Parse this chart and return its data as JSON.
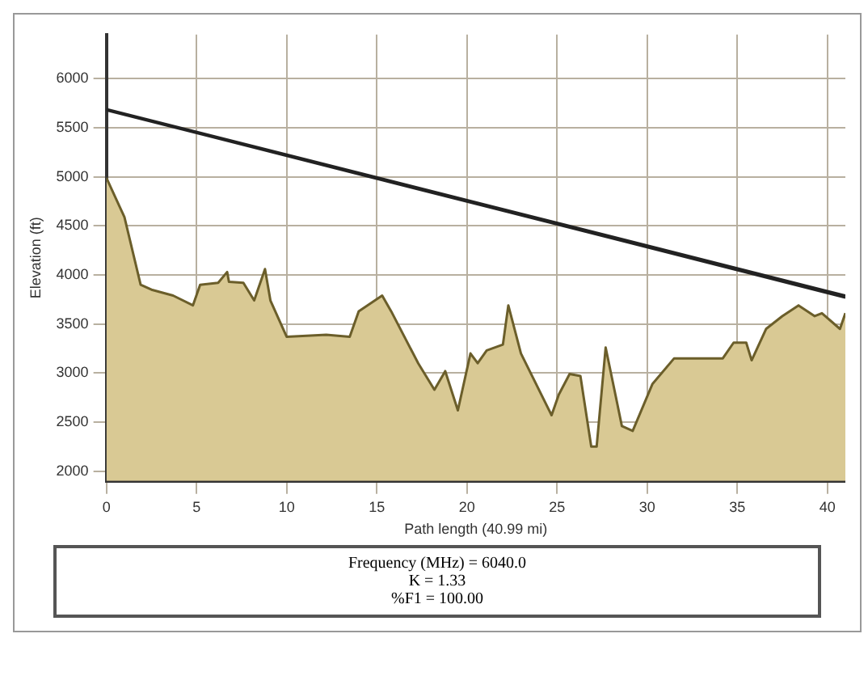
{
  "chart_data": {
    "type": "area",
    "xlabel": "Path length (40.99 mi)",
    "ylabel": "Elevation (ft)",
    "xlim": [
      0,
      41
    ],
    "xticks": [
      0,
      5,
      10,
      15,
      20,
      25,
      30,
      35,
      40
    ],
    "ylim": [
      1900,
      6450
    ],
    "yticks": [
      2000,
      2500,
      3000,
      3500,
      4000,
      4500,
      5000,
      5500,
      6000
    ],
    "grid": true,
    "legend": false,
    "marker": "none",
    "series": [
      {
        "type": "area",
        "color": "#6b5e2a",
        "x": [
          0,
          1.0,
          1.9,
          2.5,
          3.7,
          4.8,
          5.2,
          6.2,
          6.7,
          6.8,
          7.6,
          8.2,
          8.8,
          9.1,
          10.0,
          12.2,
          13.5,
          14.0,
          15.3,
          15.8,
          17.3,
          18.2,
          18.8,
          19.5,
          20.2,
          20.6,
          21.1,
          22.0,
          22.3,
          23.0,
          24.7,
          25.1,
          25.7,
          26.3,
          26.9,
          27.2,
          27.7,
          28.6,
          29.2,
          30.3,
          31.5,
          34.2,
          34.8,
          35.5,
          35.8,
          36.6,
          37.5,
          38.4,
          39.3,
          39.7,
          40.7,
          41.0
        ],
        "values": [
          4990,
          4590,
          3900,
          3850,
          3790,
          3690,
          3900,
          3920,
          4030,
          3930,
          3920,
          3740,
          4060,
          3740,
          3370,
          3390,
          3370,
          3630,
          3790,
          3630,
          3100,
          2830,
          3020,
          2620,
          3200,
          3100,
          3230,
          3290,
          3690,
          3200,
          2570,
          2780,
          2990,
          2970,
          2250,
          2250,
          3260,
          2460,
          2410,
          2890,
          3150,
          3150,
          3310,
          3310,
          3130,
          3450,
          3580,
          3690,
          3580,
          3610,
          3450,
          3610
        ]
      },
      {
        "type": "line",
        "color": "#222222",
        "x": [
          0,
          41
        ],
        "values": [
          5690,
          3790
        ]
      },
      {
        "type": "line",
        "color": "#222222",
        "x": [
          0,
          41
        ],
        "values": [
          5680,
          3770
        ]
      }
    ],
    "annotations": [
      "Frequency (MHz) = 6040.0",
      "K = 1.33",
      "%F1 = 100.00"
    ]
  }
}
